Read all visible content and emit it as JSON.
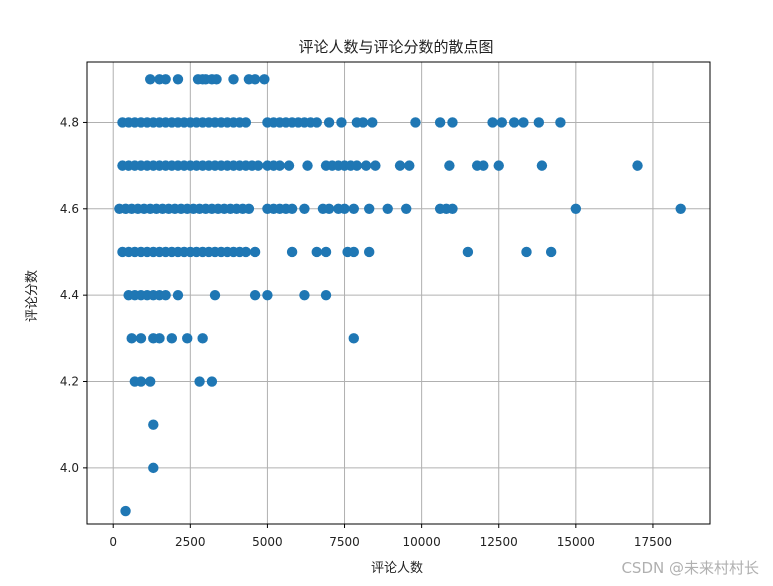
{
  "watermark": "CSDN @未来村村长",
  "chart_data": {
    "type": "scatter",
    "title": "评论人数与评论分数的散点图",
    "xlabel": "评论人数",
    "ylabel": "评论分数",
    "xlim": [
      -850,
      19350
    ],
    "ylim": [
      3.87,
      4.94
    ],
    "xticks": [
      0,
      2500,
      5000,
      7500,
      10000,
      12500,
      15000,
      17500
    ],
    "yticks": [
      4.0,
      4.2,
      4.4,
      4.6,
      4.8
    ],
    "ytick_labels": [
      "4.0",
      "4.2",
      "4.4",
      "4.6",
      "4.8"
    ],
    "grid": true,
    "marker_color": "#1f77b4",
    "series": [
      {
        "points": [
          [
            1200,
            4.9
          ],
          [
            1500,
            4.9
          ],
          [
            1700,
            4.9
          ],
          [
            2100,
            4.9
          ],
          [
            2750,
            4.9
          ],
          [
            2900,
            4.9
          ],
          [
            3000,
            4.9
          ],
          [
            3200,
            4.9
          ],
          [
            3350,
            4.9
          ],
          [
            3900,
            4.9
          ],
          [
            4400,
            4.9
          ],
          [
            4600,
            4.9
          ],
          [
            4900,
            4.9
          ],
          [
            300,
            4.8
          ],
          [
            500,
            4.8
          ],
          [
            700,
            4.8
          ],
          [
            900,
            4.8
          ],
          [
            1100,
            4.8
          ],
          [
            1300,
            4.8
          ],
          [
            1500,
            4.8
          ],
          [
            1700,
            4.8
          ],
          [
            1900,
            4.8
          ],
          [
            2100,
            4.8
          ],
          [
            2300,
            4.8
          ],
          [
            2500,
            4.8
          ],
          [
            2700,
            4.8
          ],
          [
            2900,
            4.8
          ],
          [
            3100,
            4.8
          ],
          [
            3300,
            4.8
          ],
          [
            3500,
            4.8
          ],
          [
            3700,
            4.8
          ],
          [
            3900,
            4.8
          ],
          [
            4100,
            4.8
          ],
          [
            4300,
            4.8
          ],
          [
            5000,
            4.8
          ],
          [
            5200,
            4.8
          ],
          [
            5400,
            4.8
          ],
          [
            5600,
            4.8
          ],
          [
            5800,
            4.8
          ],
          [
            6000,
            4.8
          ],
          [
            6200,
            4.8
          ],
          [
            6400,
            4.8
          ],
          [
            6600,
            4.8
          ],
          [
            7000,
            4.8
          ],
          [
            7400,
            4.8
          ],
          [
            7900,
            4.8
          ],
          [
            8100,
            4.8
          ],
          [
            8400,
            4.8
          ],
          [
            9800,
            4.8
          ],
          [
            10600,
            4.8
          ],
          [
            11000,
            4.8
          ],
          [
            12300,
            4.8
          ],
          [
            12600,
            4.8
          ],
          [
            13000,
            4.8
          ],
          [
            13300,
            4.8
          ],
          [
            13800,
            4.8
          ],
          [
            14500,
            4.8
          ],
          [
            300,
            4.7
          ],
          [
            500,
            4.7
          ],
          [
            700,
            4.7
          ],
          [
            900,
            4.7
          ],
          [
            1100,
            4.7
          ],
          [
            1300,
            4.7
          ],
          [
            1500,
            4.7
          ],
          [
            1700,
            4.7
          ],
          [
            1900,
            4.7
          ],
          [
            2100,
            4.7
          ],
          [
            2300,
            4.7
          ],
          [
            2500,
            4.7
          ],
          [
            2700,
            4.7
          ],
          [
            2900,
            4.7
          ],
          [
            3100,
            4.7
          ],
          [
            3300,
            4.7
          ],
          [
            3500,
            4.7
          ],
          [
            3700,
            4.7
          ],
          [
            3900,
            4.7
          ],
          [
            4100,
            4.7
          ],
          [
            4300,
            4.7
          ],
          [
            4500,
            4.7
          ],
          [
            4700,
            4.7
          ],
          [
            5000,
            4.7
          ],
          [
            5200,
            4.7
          ],
          [
            5400,
            4.7
          ],
          [
            5700,
            4.7
          ],
          [
            6300,
            4.7
          ],
          [
            6900,
            4.7
          ],
          [
            7100,
            4.7
          ],
          [
            7300,
            4.7
          ],
          [
            7500,
            4.7
          ],
          [
            7700,
            4.7
          ],
          [
            7900,
            4.7
          ],
          [
            8200,
            4.7
          ],
          [
            8500,
            4.7
          ],
          [
            9300,
            4.7
          ],
          [
            9600,
            4.7
          ],
          [
            10900,
            4.7
          ],
          [
            11800,
            4.7
          ],
          [
            12000,
            4.7
          ],
          [
            12500,
            4.7
          ],
          [
            13900,
            4.7
          ],
          [
            17000,
            4.7
          ],
          [
            200,
            4.6
          ],
          [
            400,
            4.6
          ],
          [
            600,
            4.6
          ],
          [
            800,
            4.6
          ],
          [
            1000,
            4.6
          ],
          [
            1200,
            4.6
          ],
          [
            1400,
            4.6
          ],
          [
            1600,
            4.6
          ],
          [
            1800,
            4.6
          ],
          [
            2000,
            4.6
          ],
          [
            2200,
            4.6
          ],
          [
            2400,
            4.6
          ],
          [
            2600,
            4.6
          ],
          [
            2800,
            4.6
          ],
          [
            3000,
            4.6
          ],
          [
            3200,
            4.6
          ],
          [
            3400,
            4.6
          ],
          [
            3600,
            4.6
          ],
          [
            3800,
            4.6
          ],
          [
            4000,
            4.6
          ],
          [
            4200,
            4.6
          ],
          [
            4400,
            4.6
          ],
          [
            5000,
            4.6
          ],
          [
            5200,
            4.6
          ],
          [
            5400,
            4.6
          ],
          [
            5600,
            4.6
          ],
          [
            5800,
            4.6
          ],
          [
            6200,
            4.6
          ],
          [
            6800,
            4.6
          ],
          [
            7000,
            4.6
          ],
          [
            7300,
            4.6
          ],
          [
            7500,
            4.6
          ],
          [
            7800,
            4.6
          ],
          [
            8300,
            4.6
          ],
          [
            8900,
            4.6
          ],
          [
            9500,
            4.6
          ],
          [
            10600,
            4.6
          ],
          [
            10800,
            4.6
          ],
          [
            11000,
            4.6
          ],
          [
            15000,
            4.6
          ],
          [
            18400,
            4.6
          ],
          [
            300,
            4.5
          ],
          [
            500,
            4.5
          ],
          [
            700,
            4.5
          ],
          [
            900,
            4.5
          ],
          [
            1100,
            4.5
          ],
          [
            1300,
            4.5
          ],
          [
            1500,
            4.5
          ],
          [
            1700,
            4.5
          ],
          [
            1900,
            4.5
          ],
          [
            2100,
            4.5
          ],
          [
            2300,
            4.5
          ],
          [
            2500,
            4.5
          ],
          [
            2700,
            4.5
          ],
          [
            2900,
            4.5
          ],
          [
            3100,
            4.5
          ],
          [
            3300,
            4.5
          ],
          [
            3500,
            4.5
          ],
          [
            3700,
            4.5
          ],
          [
            3900,
            4.5
          ],
          [
            4100,
            4.5
          ],
          [
            4300,
            4.5
          ],
          [
            4600,
            4.5
          ],
          [
            5800,
            4.5
          ],
          [
            6600,
            4.5
          ],
          [
            6900,
            4.5
          ],
          [
            7600,
            4.5
          ],
          [
            7800,
            4.5
          ],
          [
            8300,
            4.5
          ],
          [
            11500,
            4.5
          ],
          [
            13400,
            4.5
          ],
          [
            14200,
            4.5
          ],
          [
            500,
            4.4
          ],
          [
            700,
            4.4
          ],
          [
            900,
            4.4
          ],
          [
            1100,
            4.4
          ],
          [
            1300,
            4.4
          ],
          [
            1500,
            4.4
          ],
          [
            1700,
            4.4
          ],
          [
            2100,
            4.4
          ],
          [
            3300,
            4.4
          ],
          [
            4600,
            4.4
          ],
          [
            5000,
            4.4
          ],
          [
            6200,
            4.4
          ],
          [
            6900,
            4.4
          ],
          [
            900,
            4.3
          ],
          [
            1300,
            4.3
          ],
          [
            1500,
            4.3
          ],
          [
            600,
            4.3
          ],
          [
            1900,
            4.3
          ],
          [
            2400,
            4.3
          ],
          [
            2900,
            4.3
          ],
          [
            7800,
            4.3
          ],
          [
            700,
            4.2
          ],
          [
            900,
            4.2
          ],
          [
            1200,
            4.2
          ],
          [
            2800,
            4.2
          ],
          [
            3200,
            4.2
          ],
          [
            1300,
            4.1
          ],
          [
            1300,
            4.0
          ],
          [
            400,
            3.9
          ]
        ]
      }
    ]
  }
}
